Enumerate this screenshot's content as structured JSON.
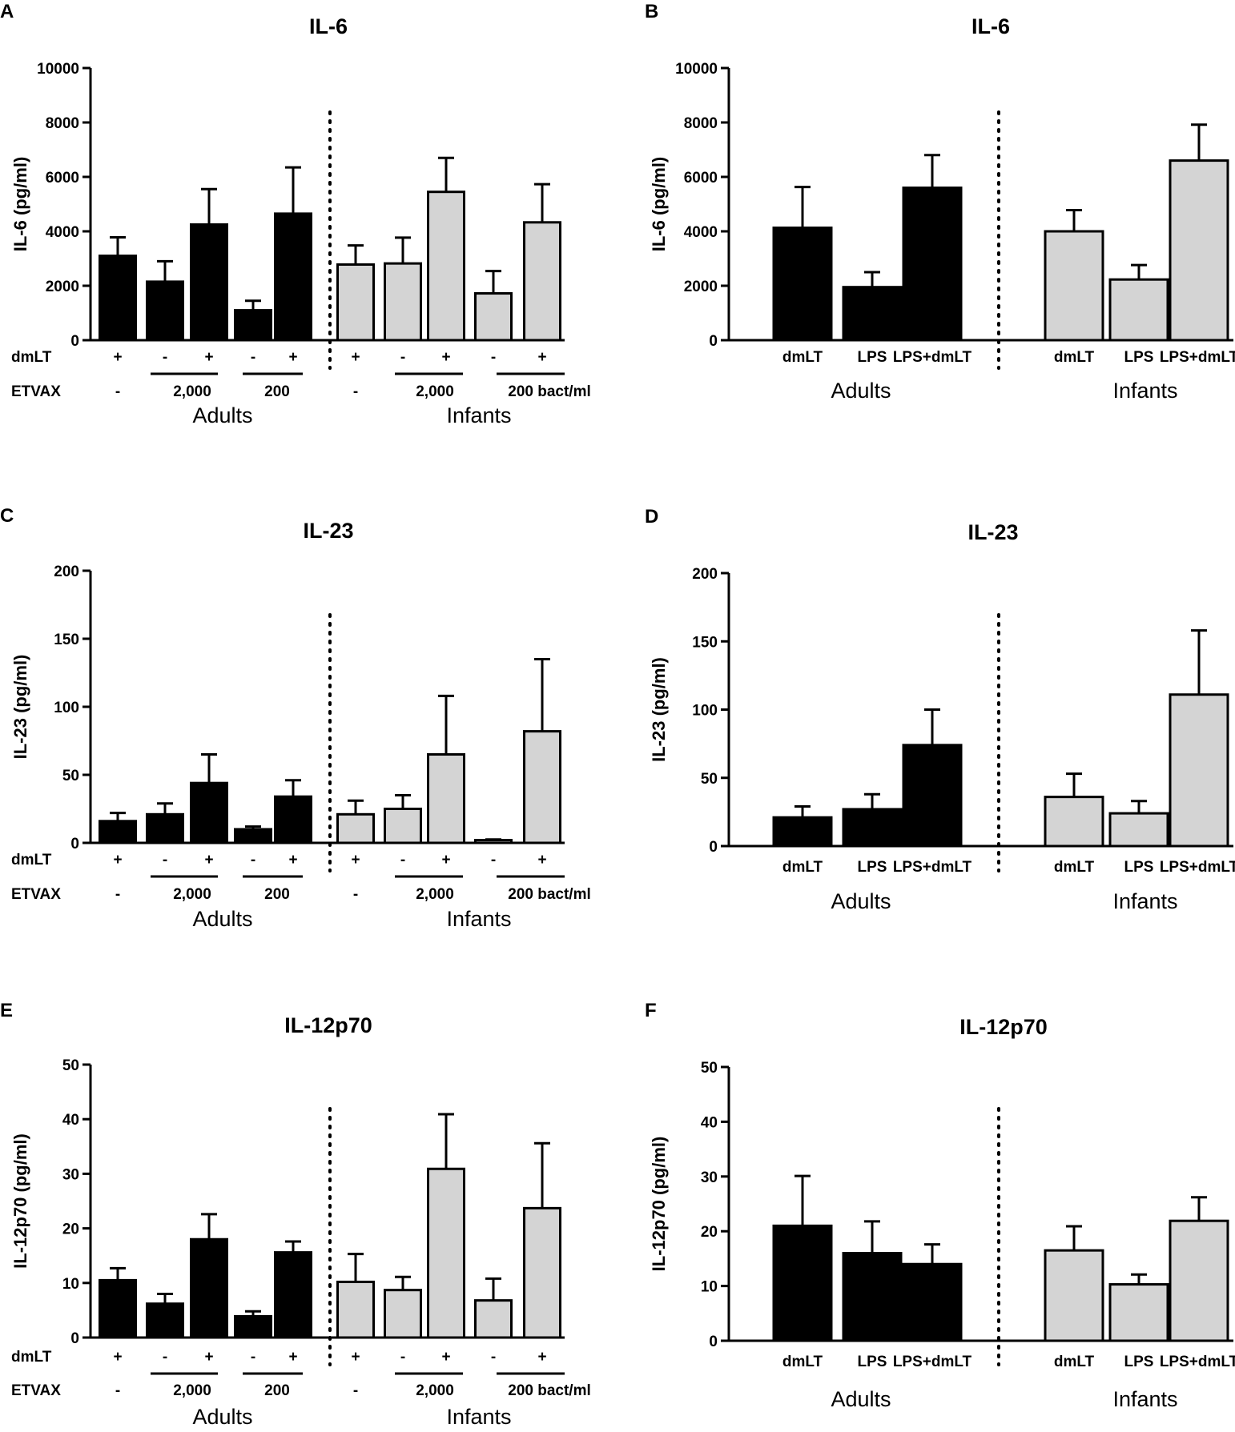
{
  "colors": {
    "adults": "#000000",
    "infants": "#d4d4d4",
    "stroke": "#000000"
  },
  "row_labels": {
    "dmlt": "dmLT",
    "etvax": "ETVAX"
  },
  "groups": {
    "adults": "Adults",
    "infants": "Infants"
  },
  "left_conditions": {
    "dmlt_signs": [
      "+",
      "-",
      "+",
      "-",
      "+",
      "+",
      "-",
      "+",
      "-",
      "+"
    ],
    "etvax_labels": [
      "-",
      "2,000",
      "200",
      "-",
      "2,000",
      "200 bact/ml"
    ]
  },
  "right_categories": [
    "dmLT",
    "LPS",
    "LPS+dmLT",
    "dmLT",
    "LPS",
    "LPS+dmLT"
  ],
  "chart_data": [
    {
      "panel": "A",
      "type": "bar",
      "title": "IL-6",
      "ylabel": "IL-6 (pg/ml)",
      "ylim": [
        0,
        10000
      ],
      "yticks": [
        "0",
        "2000",
        "4000",
        "6000",
        "8000",
        "10000"
      ],
      "categories": [
        "Adults dmLT+",
        "Adults 2,000 -",
        "Adults 2,000 +",
        "Adults 200 -",
        "Adults 200 +",
        "Infants dmLT+",
        "Infants 2,000 -",
        "Infants 2,000 +",
        "Infants 200 -",
        "Infants 200 +"
      ],
      "values": [
        3100,
        2150,
        4250,
        1100,
        4650,
        2780,
        2820,
        5450,
        1720,
        4330
      ],
      "errors": [
        680,
        750,
        1300,
        350,
        1700,
        700,
        950,
        1250,
        820,
        1400
      ]
    },
    {
      "panel": "B",
      "type": "bar",
      "title": "IL-6",
      "ylabel": "IL-6 (pg/ml)",
      "ylim": [
        0,
        10000
      ],
      "yticks": [
        "0",
        "2000",
        "4000",
        "6000",
        "8000",
        "10000"
      ],
      "categories": [
        "Adults dmLT",
        "Adults LPS",
        "Adults LPS+dmLT",
        "Infants dmLT",
        "Infants LPS",
        "Infants LPS+dmLT"
      ],
      "values": [
        4130,
        1950,
        5600,
        4000,
        2230,
        6600
      ],
      "errors": [
        1500,
        550,
        1200,
        780,
        530,
        1320
      ]
    },
    {
      "panel": "C",
      "type": "bar",
      "title": "IL-23",
      "ylabel": "IL-23 (pg/ml)",
      "ylim": [
        0,
        200
      ],
      "yticks": [
        "0",
        "50",
        "100",
        "150",
        "200"
      ],
      "categories": [
        "Adults dmLT+",
        "Adults 2,000 -",
        "Adults 2,000 +",
        "Adults 200 -",
        "Adults 200 +",
        "Infants dmLT+",
        "Infants 2,000 -",
        "Infants 2,000 +",
        "Infants 200 -",
        "Infants 200 +"
      ],
      "values": [
        16,
        21,
        44,
        10,
        34,
        21,
        25,
        65,
        2,
        82
      ],
      "errors": [
        6,
        8,
        21,
        2,
        12,
        10,
        10,
        43,
        0.5,
        53
      ]
    },
    {
      "panel": "D",
      "type": "bar",
      "title": "IL-23",
      "ylabel": "IL-23 (pg/ml)",
      "ylim": [
        0,
        200
      ],
      "yticks": [
        "0",
        "50",
        "100",
        "150",
        "200"
      ],
      "categories": [
        "Adults dmLT",
        "Adults LPS",
        "Adults LPS+dmLT",
        "Infants dmLT",
        "Infants LPS",
        "Infants LPS+dmLT"
      ],
      "values": [
        21,
        27,
        74,
        36,
        24,
        111
      ],
      "errors": [
        8,
        11,
        26,
        17,
        9,
        47
      ]
    },
    {
      "panel": "E",
      "type": "bar",
      "title": "IL-12p70",
      "ylabel": "IL-12p70 (pg/ml)",
      "ylim": [
        0,
        50
      ],
      "yticks": [
        "0",
        "10",
        "20",
        "30",
        "40",
        "50"
      ],
      "categories": [
        "Adults dmLT+",
        "Adults 2,000 -",
        "Adults 2,000 +",
        "Adults 200 -",
        "Adults 200 +",
        "Infants dmLT+",
        "Infants 2,000 -",
        "Infants 2,000 +",
        "Infants 200 -",
        "Infants 200 +"
      ],
      "values": [
        10.5,
        6.2,
        18,
        3.9,
        15.6,
        10.2,
        8.7,
        30.9,
        6.8,
        23.7
      ],
      "errors": [
        2.2,
        1.8,
        4.6,
        0.9,
        2.0,
        5.1,
        2.4,
        10.0,
        4.0,
        11.9
      ]
    },
    {
      "panel": "F",
      "type": "bar",
      "title": "IL-12p70",
      "ylabel": "IL-12p70 (pg/ml)",
      "ylim": [
        0,
        50
      ],
      "yticks": [
        "0",
        "10",
        "20",
        "30",
        "40",
        "50"
      ],
      "categories": [
        "Adults dmLT",
        "Adults LPS",
        "Adults LPS+dmLT",
        "Infants dmLT",
        "Infants LPS",
        "Infants LPS+dmLT"
      ],
      "values": [
        21,
        16,
        14,
        16.5,
        10.3,
        21.9
      ],
      "errors": [
        9.1,
        5.8,
        3.6,
        4.4,
        1.8,
        4.3
      ]
    }
  ]
}
